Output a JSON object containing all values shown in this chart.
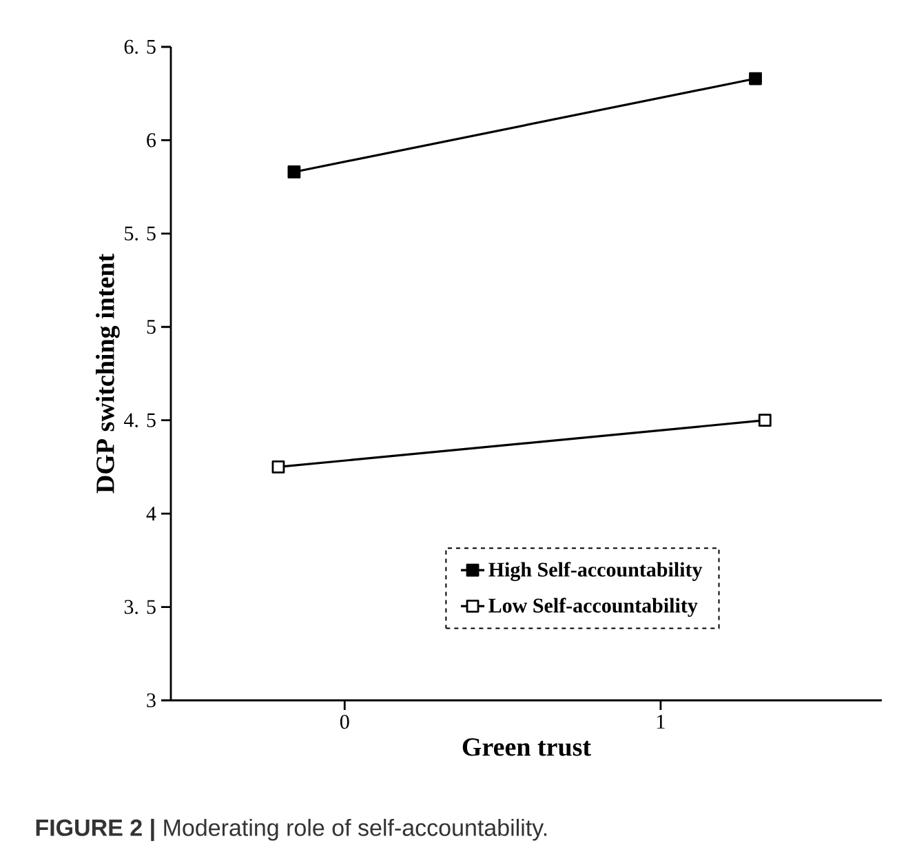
{
  "chart_data": {
    "type": "line",
    "xlabel": "Green trust",
    "ylabel": "DGP switching intent",
    "annotations": [
      "**FIGURE 2 |** Moderating role of self-accountability."
    ],
    "xlim": [
      -0.55,
      1.7
    ],
    "ylim": [
      3,
      6.5
    ],
    "xticks": [
      0,
      1
    ],
    "yticks": [
      3,
      {
        "value": 3.5,
        "label": "3. 5"
      },
      4,
      {
        "value": 4.5,
        "label": "4. 5"
      },
      5,
      {
        "value": 5.5,
        "label": "5. 5"
      },
      6,
      {
        "value": 6.5,
        "label": "6. 5"
      }
    ],
    "series": [
      {
        "name": "High Self-accountability",
        "color": "#000000",
        "x": [
          -0.16,
          1.3
        ],
        "values": [
          5.83,
          6.33
        ]
      },
      {
        "name": "Low Self-accountability",
        "color": "#000000",
        "x": [
          -0.21,
          1.33
        ],
        "values": [
          4.25,
          4.5
        ]
      }
    ],
    "marker": "square",
    "line_style": "solid",
    "legend": "bottom right",
    "grid": false
  }
}
